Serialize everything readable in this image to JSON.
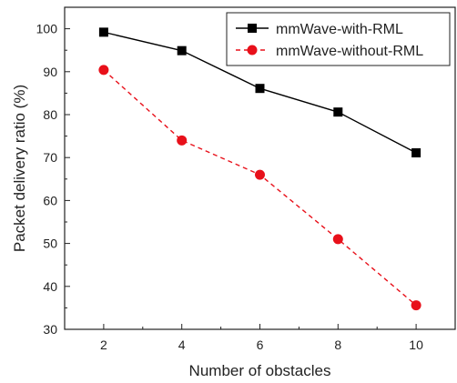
{
  "chart_data": {
    "type": "line",
    "title": "",
    "xlabel": "Number of obstacles",
    "ylabel": "Packet delivery ratio (%)",
    "x": [
      2,
      4,
      6,
      8,
      10
    ],
    "xlim": [
      1,
      11
    ],
    "ylim": [
      30,
      105
    ],
    "x_ticks": [
      2,
      4,
      6,
      8,
      10
    ],
    "y_ticks": [
      30,
      40,
      50,
      60,
      70,
      80,
      90,
      100
    ],
    "grid": false,
    "legend_position": "top-right",
    "series": [
      {
        "name": "mmWave-with-RML",
        "values": [
          99.2,
          94.9,
          86.1,
          80.6,
          71.1
        ],
        "color": "#000000",
        "marker": "square",
        "line_style": "solid"
      },
      {
        "name": "mmWave-without-RML",
        "values": [
          90.4,
          74.0,
          66.0,
          51.0,
          35.6
        ],
        "color": "#e8101a",
        "marker": "circle",
        "line_style": "dashed"
      }
    ]
  }
}
